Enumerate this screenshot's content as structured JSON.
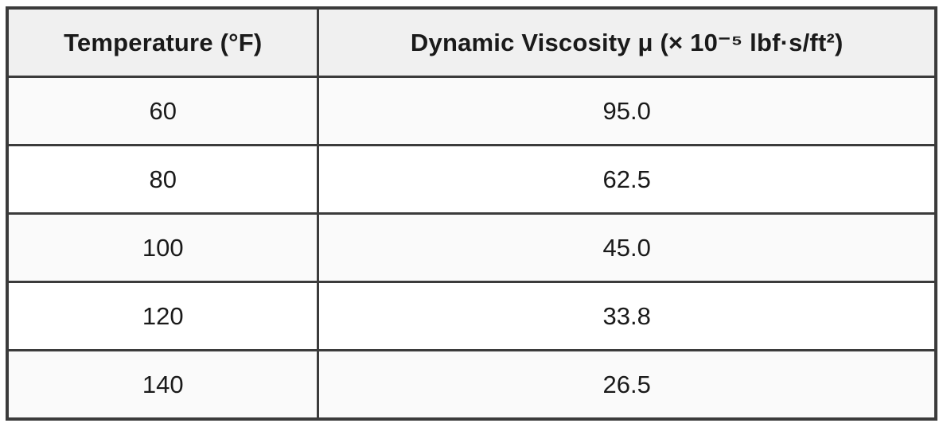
{
  "table": {
    "headers": [
      "Temperature (°F)",
      "Dynamic Viscosity μ (× 10⁻⁵ lbf·s/ft²)"
    ],
    "rows": [
      {
        "temp": "60",
        "visc": "95.0"
      },
      {
        "temp": "80",
        "visc": "62.5"
      },
      {
        "temp": "100",
        "visc": "45.0"
      },
      {
        "temp": "120",
        "visc": "33.8"
      },
      {
        "temp": "140",
        "visc": "26.5"
      }
    ]
  },
  "chart_data": {
    "type": "table",
    "title": "",
    "columns": [
      "Temperature (°F)",
      "Dynamic Viscosity μ (× 10⁻⁵ lbf·s/ft²)"
    ],
    "temperature_f": [
      60,
      80,
      100,
      120,
      140
    ],
    "dynamic_viscosity_e minus5_lbf_s_per_ft2": [
      95.0,
      62.5,
      45.0,
      33.8,
      26.5
    ]
  },
  "colors": {
    "border": "#3b3b3b",
    "header_bg": "#f0f0f0",
    "stripe_bg": "#fafafa",
    "row_bg": "#ffffff",
    "text": "#1a1a1a"
  }
}
